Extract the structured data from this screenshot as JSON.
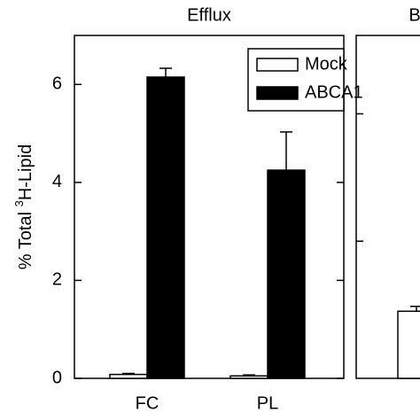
{
  "chart_data": [
    {
      "type": "bar",
      "title": "Efflux",
      "ylabel": [
        "% Total ",
        "3",
        "H-Lipid"
      ],
      "categories": [
        "FC",
        "PL"
      ],
      "series": [
        {
          "name": "Mock",
          "color": "#ffffff",
          "values": [
            0.08,
            0.05
          ],
          "errors": [
            0.02,
            0.02
          ]
        },
        {
          "name": "ABCA1",
          "color": "#000000",
          "values": [
            6.15,
            4.25
          ],
          "errors": [
            0.18,
            0.78
          ]
        }
      ],
      "ylim": [
        0,
        7
      ],
      "yticks": [
        0,
        2,
        4,
        6
      ],
      "legend": "upper right"
    },
    {
      "type": "bar",
      "title": "B",
      "categories": [
        null
      ],
      "series": [
        {
          "name": null,
          "color": "#ffffff",
          "values": [
            1.37
          ],
          "errors": [
            0.1
          ]
        }
      ],
      "ylim": [
        0,
        7
      ],
      "yticks": [
        2.8,
        5.4
      ]
    }
  ]
}
